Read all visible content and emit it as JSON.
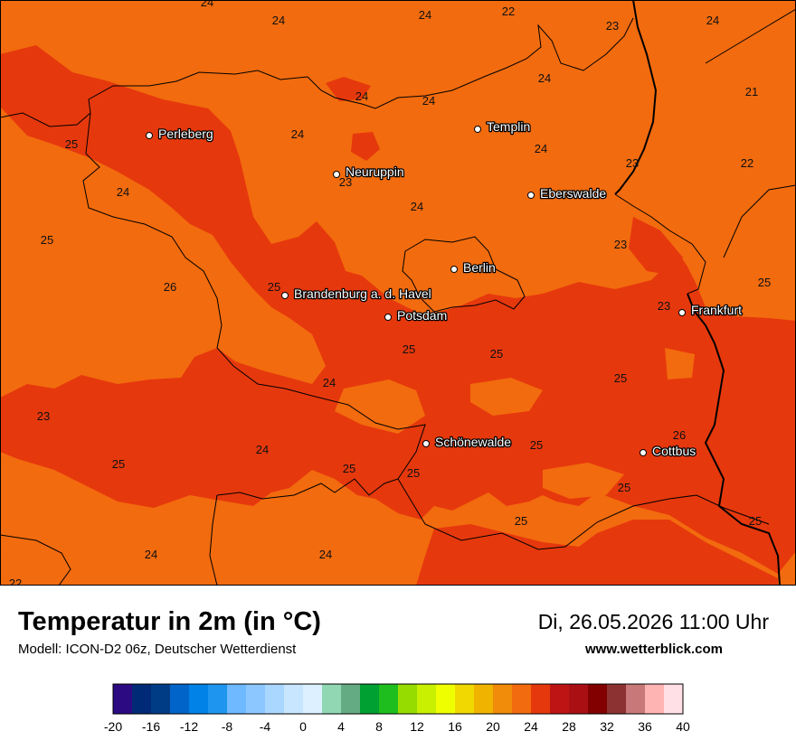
{
  "title": "Temperatur in 2m (in °C)",
  "subtitle": "Modell: ICON-D2 06z, Deutscher Wetterdienst",
  "datetime": "Di, 26.05.2026 11:00 Uhr",
  "website": "www.wetterblick.com",
  "colors": {
    "t21_24": "#f26b0e",
    "t24_27": "#e6380d",
    "border": "#000000"
  },
  "cities": [
    {
      "name": "Perleberg"
    },
    {
      "name": "Templin"
    },
    {
      "name": "Neuruppin"
    },
    {
      "name": "Eberswalde"
    },
    {
      "name": "Berlin"
    },
    {
      "name": "Brandenburg a. d. Havel"
    },
    {
      "name": "Potsdam"
    },
    {
      "name": "Frankfurt"
    },
    {
      "name": "Schönewalde"
    },
    {
      "name": "Cottbus"
    }
  ],
  "temperature_labels": [
    "24",
    "24",
    "24",
    "22",
    "23",
    "24",
    "24",
    "24",
    "21",
    "24",
    "25",
    "24",
    "24",
    "23",
    "22",
    "23",
    "24",
    "25",
    "24",
    "23",
    "26",
    "25",
    "25",
    "23",
    "25",
    "25",
    "25",
    "24",
    "23",
    "24",
    "25",
    "25",
    "25",
    "26",
    "25",
    "25",
    "25",
    "25",
    "24",
    "24",
    "22"
  ],
  "legend": {
    "ticks": [
      "-20",
      "-16",
      "-12",
      "-8",
      "-4",
      "0",
      "4",
      "8",
      "12",
      "16",
      "20",
      "24",
      "28",
      "32",
      "36",
      "40"
    ],
    "colors": [
      "#2c0a82",
      "#002a75",
      "#003c86",
      "#0064c8",
      "#0082e6",
      "#1e96f0",
      "#6eb9ff",
      "#8cc8ff",
      "#aad7ff",
      "#c8e6ff",
      "#dcf0ff",
      "#91d7b4",
      "#64aa82",
      "#00a032",
      "#1ebe1e",
      "#96dc00",
      "#c8f000",
      "#f0ff00",
      "#f0d800",
      "#f0b400",
      "#f08c0a",
      "#f26b0e",
      "#e6380d",
      "#be1414",
      "#aa0f14",
      "#820000",
      "#8c3232",
      "#c87878",
      "#ffb4b4",
      "#ffe0e6"
    ]
  }
}
